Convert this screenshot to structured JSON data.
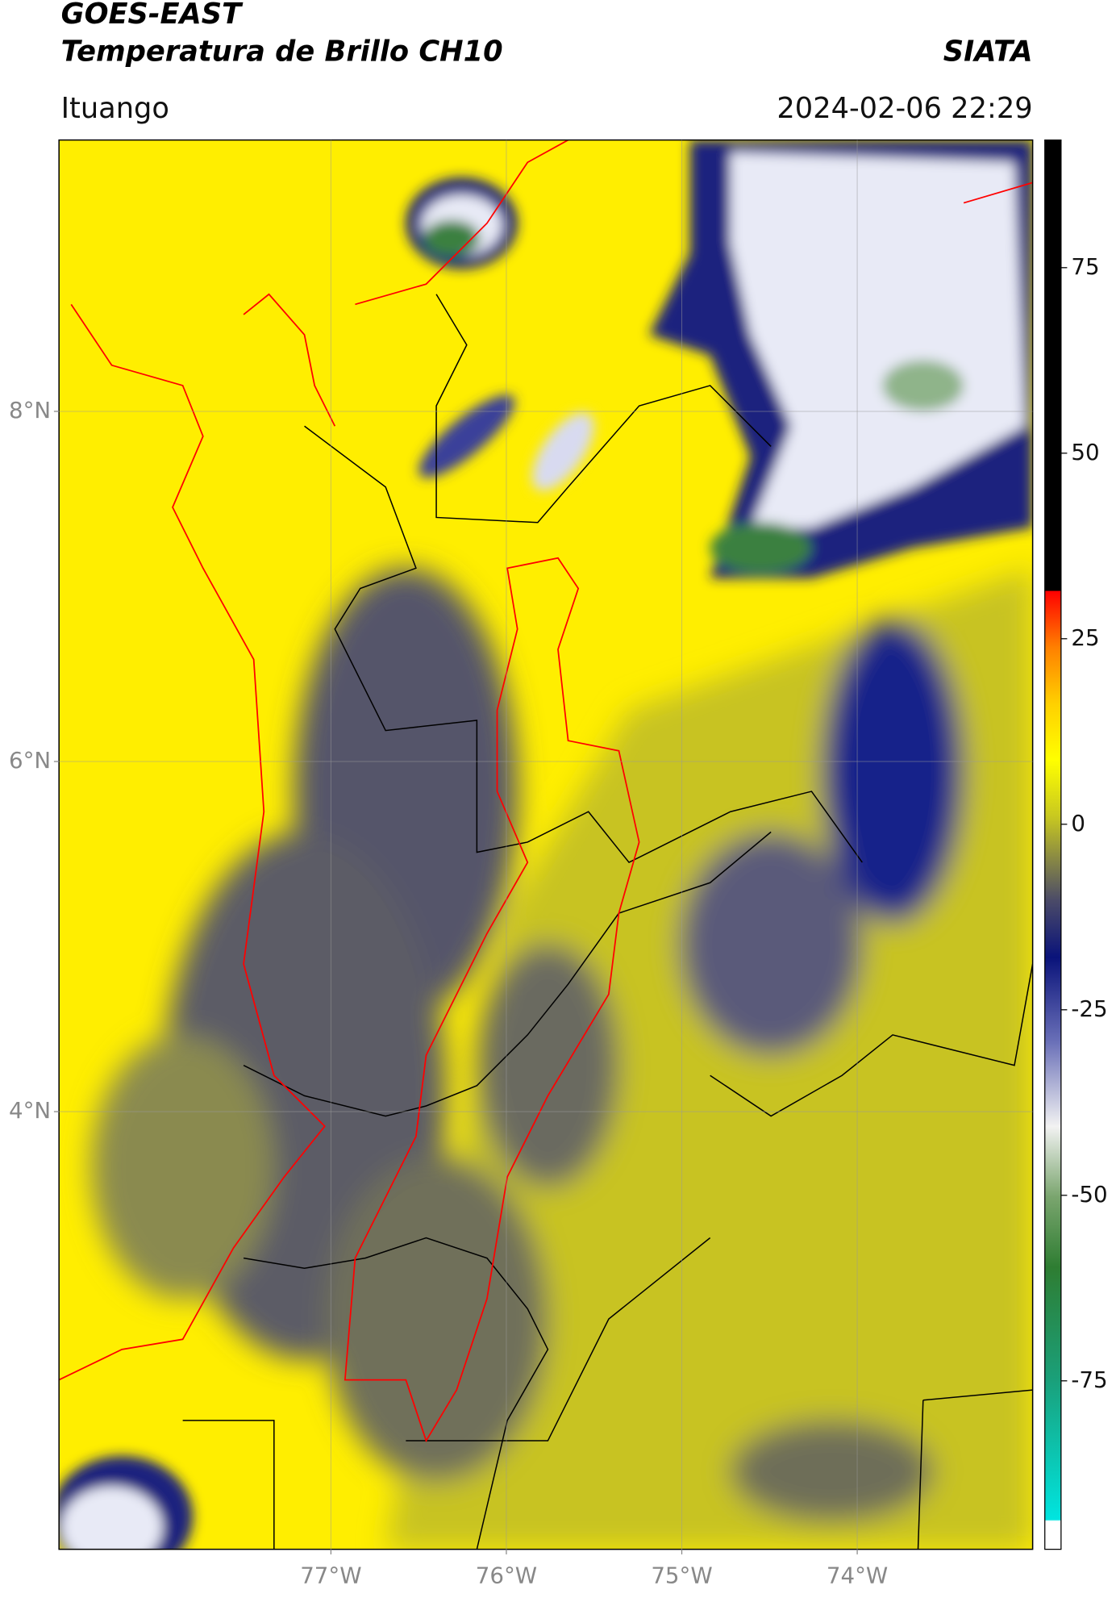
{
  "header": {
    "satellite": "GOES-EAST",
    "product": "Temperatura de Brillo CH10",
    "agency": "SIATA",
    "location": "Ituango",
    "datetime": "2024-02-06 22:29"
  },
  "map": {
    "xlim": [
      -78.55,
      -73.0
    ],
    "ylim": [
      1.5,
      9.55
    ],
    "xticks": [
      {
        "value": -77,
        "label": "77°W"
      },
      {
        "value": -76,
        "label": "76°W"
      },
      {
        "value": -75,
        "label": "75°W"
      },
      {
        "value": -74,
        "label": "74°W"
      }
    ],
    "yticks": [
      {
        "value": 8,
        "label": "8°N"
      },
      {
        "value": 6,
        "label": "6°N"
      },
      {
        "value": 4,
        "label": "4°N"
      }
    ],
    "grid": true
  },
  "colorbar": {
    "ylim": [
      -97.7,
      92.2
    ],
    "yticks": [
      75,
      50,
      25,
      0,
      -25,
      -50,
      -75
    ]
  }
}
